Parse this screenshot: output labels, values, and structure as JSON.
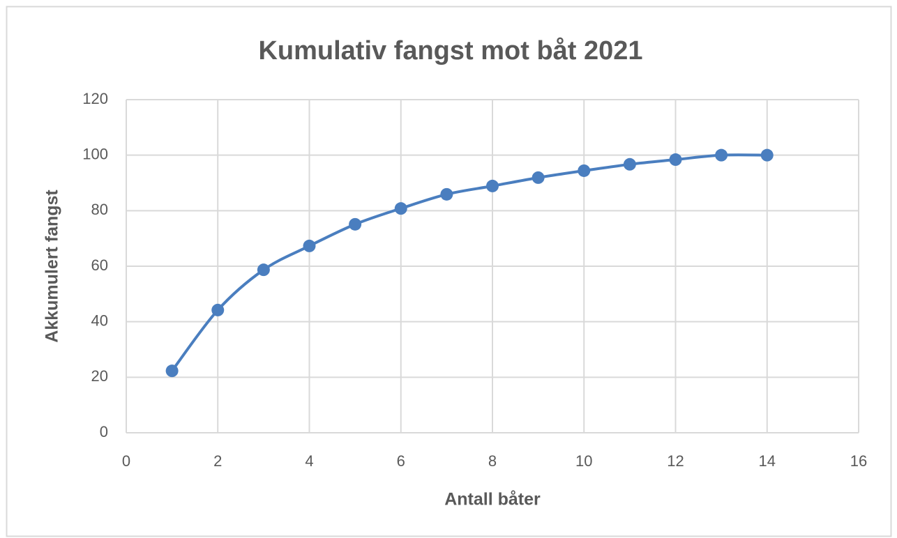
{
  "chart_data": {
    "type": "scatter",
    "title": "Kumulativ fangst mot båt 2021",
    "x_label": "Antall båter",
    "y_label": "Akkumulert fangst",
    "x": [
      1,
      2,
      3,
      4,
      5,
      6,
      7,
      8,
      9,
      10,
      11,
      12,
      13,
      14
    ],
    "series": [
      {
        "name": "Akkumulert fangst",
        "color": "#4a7ebf",
        "values": [
          22.3,
          44.2,
          58.7,
          67.3,
          75.1,
          80.8,
          85.9,
          88.9,
          91.9,
          94.4,
          96.7,
          98.4,
          100,
          100
        ]
      }
    ],
    "xlim": [
      0,
      16
    ],
    "xticks": [
      0,
      2,
      4,
      6,
      8,
      10,
      12,
      14,
      16
    ],
    "ylim": [
      0,
      120
    ],
    "yticks": [
      0,
      20,
      40,
      60,
      80,
      100,
      120
    ],
    "grid": true,
    "smooth": true
  }
}
